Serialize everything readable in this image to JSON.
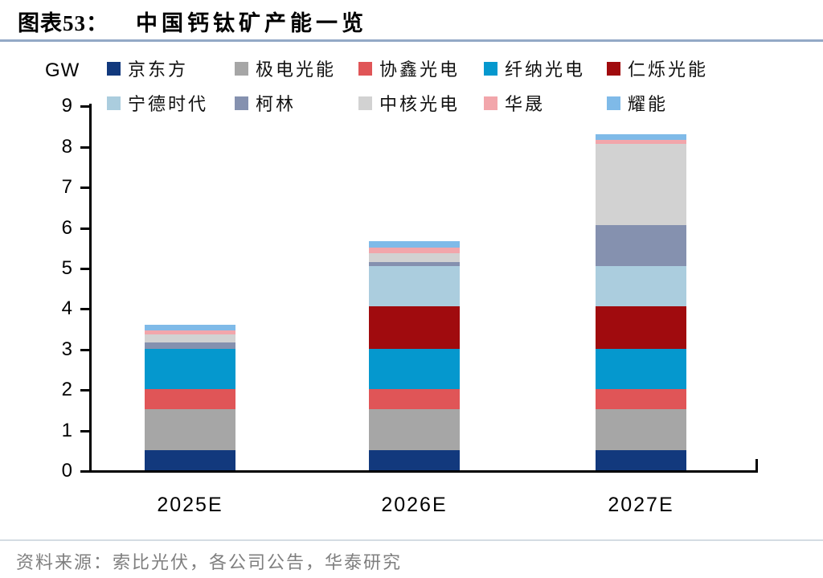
{
  "figure": {
    "label": "图表53：",
    "title": "中国钙钛矿产能一览",
    "unit_label": "GW",
    "source": "资料来源：索比光伏，各公司公告，华泰研究"
  },
  "chart_data": {
    "type": "bar",
    "stacked": true,
    "title": "中国钙钛矿产能一览",
    "ylabel": "GW",
    "xlabel": "",
    "ylim": [
      0,
      9
    ],
    "yticks": [
      0,
      1,
      2,
      3,
      4,
      5,
      6,
      7,
      8,
      9
    ],
    "grid": false,
    "legend_position": "top",
    "categories": [
      "2025E",
      "2026E",
      "2027E"
    ],
    "series": [
      {
        "name": "京东方",
        "color": "#12397d",
        "values": [
          0.5,
          0.5,
          0.5
        ]
      },
      {
        "name": "极电光能",
        "color": "#a6a6a6",
        "values": [
          1.0,
          1.0,
          1.0
        ]
      },
      {
        "name": "协鑫光电",
        "color": "#e05557",
        "values": [
          0.5,
          0.5,
          0.5
        ]
      },
      {
        "name": "纤纳光电",
        "color": "#0598ce",
        "values": [
          1.0,
          1.0,
          1.0
        ]
      },
      {
        "name": "仁烁光能",
        "color": "#a00b0e",
        "values": [
          0,
          1.05,
          1.05
        ]
      },
      {
        "name": "宁德时代",
        "color": "#abcdde",
        "values": [
          0,
          1.0,
          1.0
        ]
      },
      {
        "name": "柯林",
        "color": "#8591af",
        "values": [
          0.15,
          0.1,
          1.0
        ]
      },
      {
        "name": "中核光电",
        "color": "#d2d2d2",
        "values": [
          0.2,
          0.2,
          2.0
        ]
      },
      {
        "name": "华晟",
        "color": "#f2a6ab",
        "values": [
          0.1,
          0.15,
          0.1
        ]
      },
      {
        "name": "耀能",
        "color": "#7fbae8",
        "values": [
          0.15,
          0.15,
          0.15
        ]
      }
    ],
    "totals": [
      3.6,
      5.65,
      8.3
    ]
  }
}
